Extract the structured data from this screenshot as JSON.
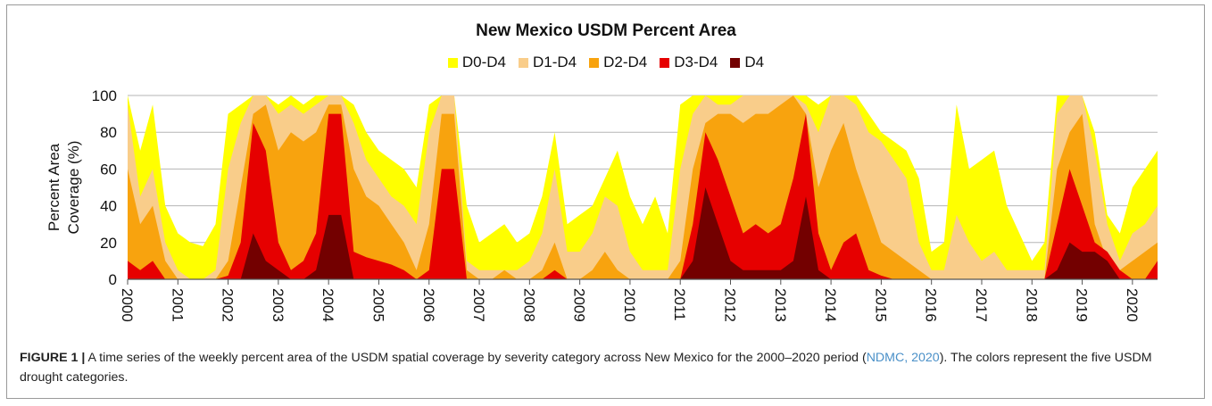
{
  "figure": {
    "label": "FIGURE 1 |",
    "caption_part1": "A time series of the weekly percent area of the USDM spatial coverage by severity category across New Mexico for the 2000–2020 period (",
    "citation": "NDMC, 2020",
    "caption_part2": "). The colors represent the five USDM drought categories."
  },
  "colors": {
    "D0": "#ffff00",
    "D1": "#f9cd8a",
    "D2": "#f8a30e",
    "D3": "#e60000",
    "D4": "#730000"
  },
  "chart_data": {
    "type": "area",
    "title": "New Mexico USDM Percent Area",
    "xlabel": "",
    "ylabel": "Percent Area Coverage (%)",
    "ylim": [
      0,
      100
    ],
    "yticks": [
      0,
      20,
      40,
      60,
      80,
      100
    ],
    "xlim": [
      2000,
      2020.5
    ],
    "xticks": [
      "2000",
      "2001",
      "2002",
      "2003",
      "2004",
      "2005",
      "2006",
      "2007",
      "2008",
      "2009",
      "2010",
      "2011",
      "2012",
      "2013",
      "2014",
      "2015",
      "2016",
      "2017",
      "2018",
      "2019",
      "2020"
    ],
    "grid": true,
    "legend_position": "top-center",
    "x": [
      2000.0,
      2000.25,
      2000.5,
      2000.75,
      2001.0,
      2001.25,
      2001.5,
      2001.75,
      2002.0,
      2002.25,
      2002.5,
      2002.75,
      2003.0,
      2003.25,
      2003.5,
      2003.75,
      2004.0,
      2004.25,
      2004.5,
      2004.75,
      2005.0,
      2005.25,
      2005.5,
      2005.75,
      2006.0,
      2006.25,
      2006.5,
      2006.75,
      2007.0,
      2007.25,
      2007.5,
      2007.75,
      2008.0,
      2008.25,
      2008.5,
      2008.75,
      2009.0,
      2009.25,
      2009.5,
      2009.75,
      2010.0,
      2010.25,
      2010.5,
      2010.75,
      2011.0,
      2011.25,
      2011.5,
      2011.75,
      2012.0,
      2012.25,
      2012.5,
      2012.75,
      2013.0,
      2013.25,
      2013.5,
      2013.75,
      2014.0,
      2014.25,
      2014.5,
      2014.75,
      2015.0,
      2015.25,
      2015.5,
      2015.75,
      2016.0,
      2016.25,
      2016.5,
      2016.75,
      2017.0,
      2017.25,
      2017.5,
      2017.75,
      2018.0,
      2018.25,
      2018.5,
      2018.75,
      2019.0,
      2019.25,
      2019.5,
      2019.75,
      2020.0,
      2020.25,
      2020.5
    ],
    "series": [
      {
        "name": "D0-D4",
        "values": [
          100,
          70,
          95,
          40,
          25,
          20,
          18,
          30,
          90,
          95,
          100,
          100,
          95,
          100,
          95,
          100,
          100,
          100,
          95,
          80,
          70,
          65,
          60,
          50,
          95,
          100,
          100,
          40,
          20,
          25,
          30,
          20,
          25,
          45,
          80,
          30,
          35,
          40,
          55,
          70,
          45,
          30,
          45,
          25,
          95,
          100,
          100,
          100,
          100,
          100,
          100,
          100,
          100,
          100,
          100,
          95,
          100,
          100,
          100,
          90,
          80,
          75,
          70,
          55,
          15,
          20,
          95,
          60,
          65,
          70,
          40,
          25,
          10,
          20,
          100,
          100,
          100,
          80,
          35,
          25,
          50,
          60,
          70
        ]
      },
      {
        "name": "D1-D4",
        "values": [
          95,
          45,
          60,
          20,
          5,
          0,
          0,
          5,
          60,
          85,
          100,
          100,
          90,
          95,
          90,
          95,
          100,
          100,
          85,
          65,
          55,
          45,
          40,
          30,
          80,
          100,
          100,
          10,
          5,
          5,
          5,
          5,
          10,
          25,
          60,
          15,
          15,
          25,
          45,
          40,
          15,
          5,
          5,
          5,
          60,
          90,
          100,
          95,
          95,
          100,
          100,
          100,
          100,
          100,
          95,
          80,
          100,
          100,
          95,
          80,
          75,
          65,
          55,
          20,
          5,
          5,
          35,
          20,
          10,
          15,
          5,
          5,
          5,
          5,
          90,
          100,
          100,
          70,
          30,
          10,
          25,
          30,
          40
        ]
      },
      {
        "name": "D2-D4",
        "values": [
          60,
          30,
          40,
          10,
          0,
          0,
          0,
          0,
          10,
          50,
          90,
          95,
          70,
          80,
          75,
          80,
          95,
          95,
          60,
          45,
          40,
          30,
          20,
          5,
          30,
          90,
          90,
          5,
          0,
          0,
          5,
          0,
          0,
          5,
          20,
          0,
          0,
          5,
          15,
          5,
          0,
          0,
          0,
          0,
          10,
          60,
          85,
          90,
          90,
          85,
          90,
          90,
          95,
          100,
          90,
          50,
          70,
          85,
          60,
          40,
          20,
          15,
          10,
          5,
          0,
          0,
          0,
          0,
          0,
          0,
          0,
          0,
          0,
          0,
          60,
          80,
          90,
          30,
          10,
          5,
          10,
          15,
          20
        ]
      },
      {
        "name": "D3-D4",
        "values": [
          10,
          5,
          10,
          0,
          0,
          0,
          0,
          0,
          2,
          20,
          85,
          70,
          20,
          5,
          10,
          25,
          90,
          90,
          15,
          12,
          10,
          8,
          5,
          0,
          5,
          60,
          60,
          0,
          0,
          0,
          0,
          0,
          0,
          0,
          5,
          0,
          0,
          0,
          0,
          0,
          0,
          0,
          0,
          0,
          0,
          30,
          80,
          65,
          45,
          25,
          30,
          25,
          30,
          55,
          90,
          25,
          5,
          20,
          25,
          5,
          2,
          0,
          0,
          0,
          0,
          0,
          0,
          0,
          0,
          0,
          0,
          0,
          0,
          0,
          30,
          60,
          40,
          20,
          15,
          5,
          0,
          0,
          10
        ]
      },
      {
        "name": "D4",
        "values": [
          0,
          0,
          0,
          0,
          0,
          0,
          0,
          0,
          0,
          0,
          25,
          10,
          5,
          0,
          0,
          5,
          35,
          35,
          0,
          0,
          0,
          0,
          0,
          0,
          0,
          0,
          0,
          0,
          0,
          0,
          0,
          0,
          0,
          0,
          0,
          0,
          0,
          0,
          0,
          0,
          0,
          0,
          0,
          0,
          0,
          10,
          50,
          30,
          10,
          5,
          5,
          5,
          5,
          10,
          45,
          5,
          0,
          0,
          0,
          0,
          0,
          0,
          0,
          0,
          0,
          0,
          0,
          0,
          0,
          0,
          0,
          0,
          0,
          0,
          5,
          20,
          15,
          15,
          10,
          0,
          0,
          0,
          0
        ]
      }
    ]
  }
}
